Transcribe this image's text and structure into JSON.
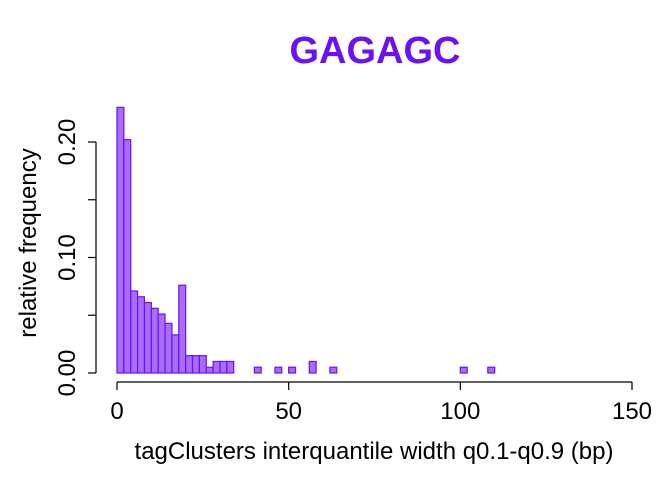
{
  "chart_data": {
    "type": "bar",
    "title": "GAGAGC",
    "xlabel": "tagClusters interquantile width q0.1-q0.9 (bp)",
    "ylabel": "relative frequency",
    "xlim": [
      0,
      150
    ],
    "ylim": [
      0,
      0.23
    ],
    "xticks": [
      0,
      50,
      100,
      150
    ],
    "yticks": [
      0.0,
      0.1,
      0.2
    ],
    "xtick_labels": [
      "0",
      "50",
      "100",
      "150"
    ],
    "ytick_labels": [
      "0.00",
      "0.10",
      "0.20"
    ],
    "bin_width": 2,
    "grid": false,
    "colors": {
      "title": "#6a12f2",
      "bar_fill": "#a86cf7",
      "bar_edge": "#6a12f2"
    },
    "bins": [
      {
        "x0": 0,
        "x1": 2,
        "value": 0.23
      },
      {
        "x0": 2,
        "x1": 4,
        "value": 0.202
      },
      {
        "x0": 4,
        "x1": 6,
        "value": 0.071
      },
      {
        "x0": 6,
        "x1": 8,
        "value": 0.066
      },
      {
        "x0": 8,
        "x1": 10,
        "value": 0.061
      },
      {
        "x0": 10,
        "x1": 12,
        "value": 0.056
      },
      {
        "x0": 12,
        "x1": 14,
        "value": 0.051
      },
      {
        "x0": 14,
        "x1": 16,
        "value": 0.043
      },
      {
        "x0": 16,
        "x1": 18,
        "value": 0.033
      },
      {
        "x0": 18,
        "x1": 20,
        "value": 0.076
      },
      {
        "x0": 20,
        "x1": 22,
        "value": 0.015
      },
      {
        "x0": 22,
        "x1": 24,
        "value": 0.015
      },
      {
        "x0": 24,
        "x1": 26,
        "value": 0.015
      },
      {
        "x0": 26,
        "x1": 28,
        "value": 0.005
      },
      {
        "x0": 28,
        "x1": 30,
        "value": 0.01
      },
      {
        "x0": 30,
        "x1": 32,
        "value": 0.01
      },
      {
        "x0": 32,
        "x1": 34,
        "value": 0.01
      },
      {
        "x0": 40,
        "x1": 42,
        "value": 0.005
      },
      {
        "x0": 46,
        "x1": 48,
        "value": 0.005
      },
      {
        "x0": 50,
        "x1": 52,
        "value": 0.005
      },
      {
        "x0": 56,
        "x1": 58,
        "value": 0.01
      },
      {
        "x0": 62,
        "x1": 64,
        "value": 0.005
      },
      {
        "x0": 100,
        "x1": 102,
        "value": 0.005
      },
      {
        "x0": 108,
        "x1": 110,
        "value": 0.005
      }
    ]
  }
}
